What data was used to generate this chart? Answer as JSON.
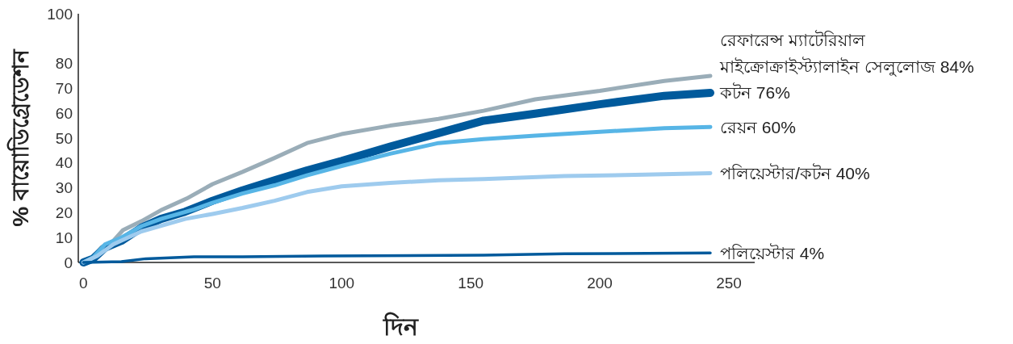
{
  "chart_data": {
    "type": "line",
    "xlabel": "দিন",
    "ylabel": "% বায়োডিগ্রেডেশন",
    "xlim": [
      -2,
      260
    ],
    "ylim": [
      0,
      100
    ],
    "xticks": [
      0,
      50,
      100,
      150,
      200,
      250
    ],
    "yticks": [
      0,
      10,
      20,
      30,
      40,
      50,
      60,
      70,
      80,
      100
    ],
    "grid": false,
    "legend": false,
    "marker": "none",
    "line_style": "solid",
    "series": [
      {
        "name": "রেফারেন্স ম্যাটেরিয়াল\nমাইক্রোক্রাইস্ট্যালাইন সেলুলোজ  84%",
        "color": "#9aadb8",
        "x": [
          0,
          3.75,
          6.9,
          11.6,
          15.3,
          22.5,
          30,
          40,
          50,
          61.6,
          74,
          86.6,
          100,
          118.8,
          137.5,
          155,
          175,
          200,
          225,
          242.8
        ],
        "values": [
          0,
          2,
          6,
          8.7,
          13,
          16.6,
          21,
          25.7,
          31.5,
          36.4,
          42,
          48,
          51.6,
          55,
          57.7,
          61,
          65.6,
          69,
          73,
          75
        ]
      },
      {
        "name": "কটন  76%",
        "color": "#005a9c",
        "x": [
          0,
          3.75,
          8.4,
          14.7,
          22.5,
          30,
          39.4,
          50,
          61.6,
          74,
          86.6,
          100,
          118.8,
          137.5,
          155,
          175,
          200,
          225,
          242.8
        ],
        "values": [
          0,
          1.5,
          6,
          8.7,
          14,
          17.5,
          20.4,
          24.8,
          29,
          33,
          37,
          40.8,
          46.6,
          52,
          57,
          59.8,
          63.6,
          67,
          68.2
        ]
      },
      {
        "name": "রেয়ন  60%",
        "color": "#57b5e6",
        "x": [
          0,
          3.75,
          8.4,
          14.7,
          22.5,
          30,
          42.8,
          50,
          61.6,
          74,
          86.6,
          100,
          118.8,
          137.5,
          155,
          175,
          200,
          225,
          242.8
        ],
        "values": [
          0,
          2,
          7.3,
          10,
          14.6,
          17.5,
          21.3,
          24,
          27.7,
          31,
          35,
          38.8,
          43.7,
          48,
          49.6,
          51,
          52.5,
          54,
          54.5
        ]
      },
      {
        "name": "পলিয়েস্টার/কটন  40%",
        "color": "#9ecbee",
        "x": [
          0,
          5.3,
          11.6,
          22.5,
          39.4,
          50,
          61.6,
          74,
          86.6,
          100,
          118.8,
          137.5,
          155,
          186.3,
          217.5,
          242.8
        ],
        "values": [
          0,
          2.6,
          7.3,
          12.5,
          17.5,
          19.5,
          21.9,
          24.8,
          28.3,
          30.6,
          32,
          33,
          33.5,
          34.7,
          35.3,
          35.9
        ]
      },
      {
        "name": "পলিয়েস্টার  4%",
        "color": "#005a9c",
        "x": [
          0,
          14.7,
          24.1,
          42.8,
          61.6,
          92.8,
          155,
          186.3,
          242.8
        ],
        "values": [
          0,
          0.3,
          1.5,
          2.3,
          2.3,
          2.6,
          2.9,
          3.5,
          3.8
        ]
      }
    ]
  }
}
